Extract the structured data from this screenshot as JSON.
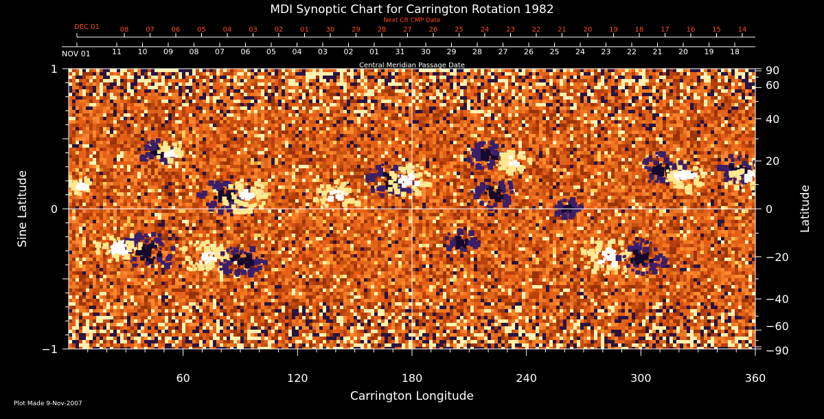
{
  "chart_data": {
    "type": "heatmap",
    "title": "MDI Synoptic Chart for Carrington Rotation 1982",
    "xlabel": "Carrington Longitude",
    "ylabel_left": "Sine Latitude",
    "ylabel_right": "Latitude",
    "top_label": "Central Meridian Passage Date",
    "next_cr_label": "Next CR CMP Date",
    "footer": "Plot Made  9-Nov-2007",
    "xlim": [
      0,
      360
    ],
    "ylim": [
      -1,
      1
    ],
    "x_ticks": [
      {
        "value": 60,
        "label": "60"
      },
      {
        "value": 120,
        "label": "120"
      },
      {
        "value": 180,
        "label": "180"
      },
      {
        "value": 240,
        "label": "240"
      },
      {
        "value": 300,
        "label": "300"
      },
      {
        "value": 360,
        "label": "360"
      }
    ],
    "y_ticks_left": [
      {
        "value": 1,
        "label": "1"
      },
      {
        "value": 0,
        "label": "0"
      },
      {
        "value": -1,
        "label": "−1"
      }
    ],
    "y_ticks_right": [
      {
        "deg": 90,
        "label": "90"
      },
      {
        "deg": 60,
        "label": "60"
      },
      {
        "deg": 40,
        "label": "40"
      },
      {
        "deg": 20,
        "label": "20"
      },
      {
        "deg": 0,
        "label": "0"
      },
      {
        "deg": -20,
        "label": "−20"
      },
      {
        "deg": -40,
        "label": "−40"
      },
      {
        "deg": -60,
        "label": "−60"
      },
      {
        "deg": -90,
        "label": "−90"
      }
    ],
    "month_label_main": "NOV 01",
    "month_label_next": "DEC 01",
    "cmp_dates": [
      "11",
      "10",
      "09",
      "08",
      "07",
      "06",
      "05",
      "04",
      "03",
      "02",
      "01",
      "31",
      "30",
      "29",
      "28",
      "27",
      "26",
      "25",
      "24",
      "23",
      "22",
      "21",
      "20",
      "19",
      "18"
    ],
    "next_cr_dates": [
      "08",
      "07",
      "06",
      "05",
      "04",
      "03",
      "02",
      "01",
      "30",
      "29",
      "28",
      "27",
      "26",
      "25",
      "24",
      "23",
      "22",
      "21",
      "20",
      "19",
      "18",
      "17",
      "16",
      "15",
      "14"
    ],
    "colors": {
      "background": "#000000",
      "field_base": "#d85a14",
      "positive_polarity": "#ffffff",
      "negative_polarity": "#140a30",
      "next_cr_text": "#ff4a1c",
      "axes": "#ffffff"
    },
    "active_regions": [
      {
        "lon": 40,
        "sinlat": -0.3,
        "polarity": "negative",
        "strength": 1.0
      },
      {
        "lon": 25,
        "sinlat": -0.26,
        "polarity": "positive",
        "strength": 0.8
      },
      {
        "lon": 70,
        "sinlat": -0.33,
        "polarity": "positive",
        "strength": 0.9
      },
      {
        "lon": 90,
        "sinlat": -0.36,
        "polarity": "negative",
        "strength": 0.9
      },
      {
        "lon": 80,
        "sinlat": 0.1,
        "polarity": "negative",
        "strength": 0.9
      },
      {
        "lon": 92,
        "sinlat": 0.1,
        "polarity": "positive",
        "strength": 0.8
      },
      {
        "lon": 45,
        "sinlat": 0.42,
        "polarity": "negative",
        "strength": 0.6
      },
      {
        "lon": 52,
        "sinlat": 0.42,
        "polarity": "positive",
        "strength": 0.5
      },
      {
        "lon": 140,
        "sinlat": 0.1,
        "polarity": "positive",
        "strength": 0.8
      },
      {
        "lon": 168,
        "sinlat": 0.22,
        "polarity": "negative",
        "strength": 0.9
      },
      {
        "lon": 177,
        "sinlat": 0.22,
        "polarity": "positive",
        "strength": 0.8
      },
      {
        "lon": 218,
        "sinlat": 0.4,
        "polarity": "negative",
        "strength": 0.7
      },
      {
        "lon": 232,
        "sinlat": 0.35,
        "polarity": "positive",
        "strength": 0.6
      },
      {
        "lon": 222,
        "sinlat": 0.12,
        "polarity": "negative",
        "strength": 0.8
      },
      {
        "lon": 282,
        "sinlat": -0.33,
        "polarity": "positive",
        "strength": 1.0
      },
      {
        "lon": 300,
        "sinlat": -0.33,
        "polarity": "negative",
        "strength": 0.9
      },
      {
        "lon": 310,
        "sinlat": 0.3,
        "polarity": "negative",
        "strength": 0.8
      },
      {
        "lon": 322,
        "sinlat": 0.25,
        "polarity": "positive",
        "strength": 0.8
      },
      {
        "lon": 350,
        "sinlat": 0.3,
        "polarity": "negative",
        "strength": 0.7
      },
      {
        "lon": 355,
        "sinlat": 0.24,
        "polarity": "positive",
        "strength": 0.7
      },
      {
        "lon": 205,
        "sinlat": -0.22,
        "polarity": "negative",
        "strength": 0.6
      },
      {
        "lon": 260,
        "sinlat": 0.02,
        "polarity": "negative",
        "strength": 0.5
      },
      {
        "lon": 5,
        "sinlat": 0.18,
        "polarity": "positive",
        "strength": 0.5
      }
    ]
  }
}
